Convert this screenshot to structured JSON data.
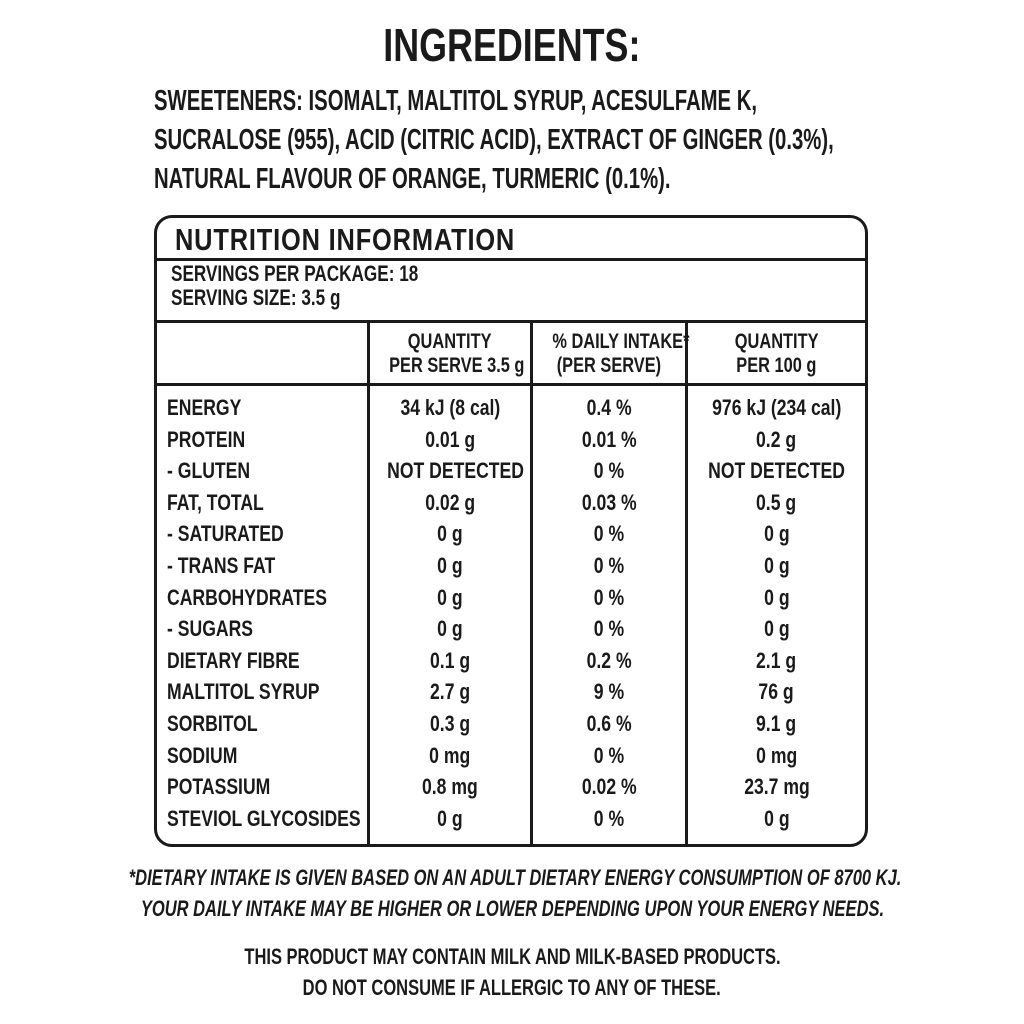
{
  "title": "INGREDIENTS:",
  "ingredients": [
    "SWEETENERS: ISOMALT, MALTITOL SYRUP, ACESULFAME K,",
    "SUCRALOSE (955), ACID (CITRIC ACID), EXTRACT OF GINGER (0.3%),",
    "NATURAL FLAVOUR OF ORANGE, TURMERIC (0.1%)."
  ],
  "nutrition": {
    "title": "NUTRITION INFORMATION",
    "servings": "SERVINGS PER PACKAGE: 18",
    "serving_size": "SERVING SIZE: 3.5 g",
    "headers": [
      [
        "",
        ""
      ],
      [
        "QUANTITY",
        "PER SERVE 3.5 g"
      ],
      [
        "% DAILY INTAKE*",
        "(PER SERVE)"
      ],
      [
        "QUANTITY",
        "PER 100 g"
      ]
    ],
    "rows": [
      [
        "ENERGY",
        "34 kJ (8 cal)",
        "0.4 %",
        "976 kJ (234 cal)"
      ],
      [
        "PROTEIN",
        "0.01 g",
        "0.01 %",
        "0.2 g"
      ],
      [
        "- GLUTEN",
        "NOT DETECTED",
        "0 %",
        "NOT DETECTED"
      ],
      [
        "FAT, TOTAL",
        "0.02 g",
        "0.03 %",
        "0.5 g"
      ],
      [
        "- SATURATED",
        "0 g",
        "0 %",
        "0 g"
      ],
      [
        "- TRANS FAT",
        "0 g",
        "0 %",
        "0 g"
      ],
      [
        "CARBOHYDRATES",
        "0 g",
        "0 %",
        "0 g"
      ],
      [
        "- SUGARS",
        "0 g",
        "0 %",
        "0 g"
      ],
      [
        "DIETARY FIBRE",
        "0.1 g",
        "0.2 %",
        "2.1 g"
      ],
      [
        "MALTITOL SYRUP",
        "2.7 g",
        "9 %",
        "76 g"
      ],
      [
        "SORBITOL",
        "0.3 g",
        "0.6 %",
        "9.1 g"
      ],
      [
        "SODIUM",
        "0 mg",
        "0 %",
        "0 mg"
      ],
      [
        "POTASSIUM",
        "0.8 mg",
        "0.02 %",
        "23.7 mg"
      ],
      [
        "STEVIOL GLYCOSIDES",
        "0 g",
        "0 %",
        "0 g"
      ]
    ]
  },
  "footnote": [
    "*DIETARY INTAKE IS GIVEN BASED ON AN ADULT DIETARY ENERGY CONSUMPTION OF 8700 KJ.",
    "YOUR DAILY INTAKE MAY BE HIGHER OR LOWER DEPENDING UPON YOUR ENERGY NEEDS."
  ],
  "allergen": [
    "THIS PRODUCT MAY CONTAIN MILK AND MILK-BASED PRODUCTS.",
    "DO NOT CONSUME IF ALLERGIC TO ANY OF THESE."
  ]
}
